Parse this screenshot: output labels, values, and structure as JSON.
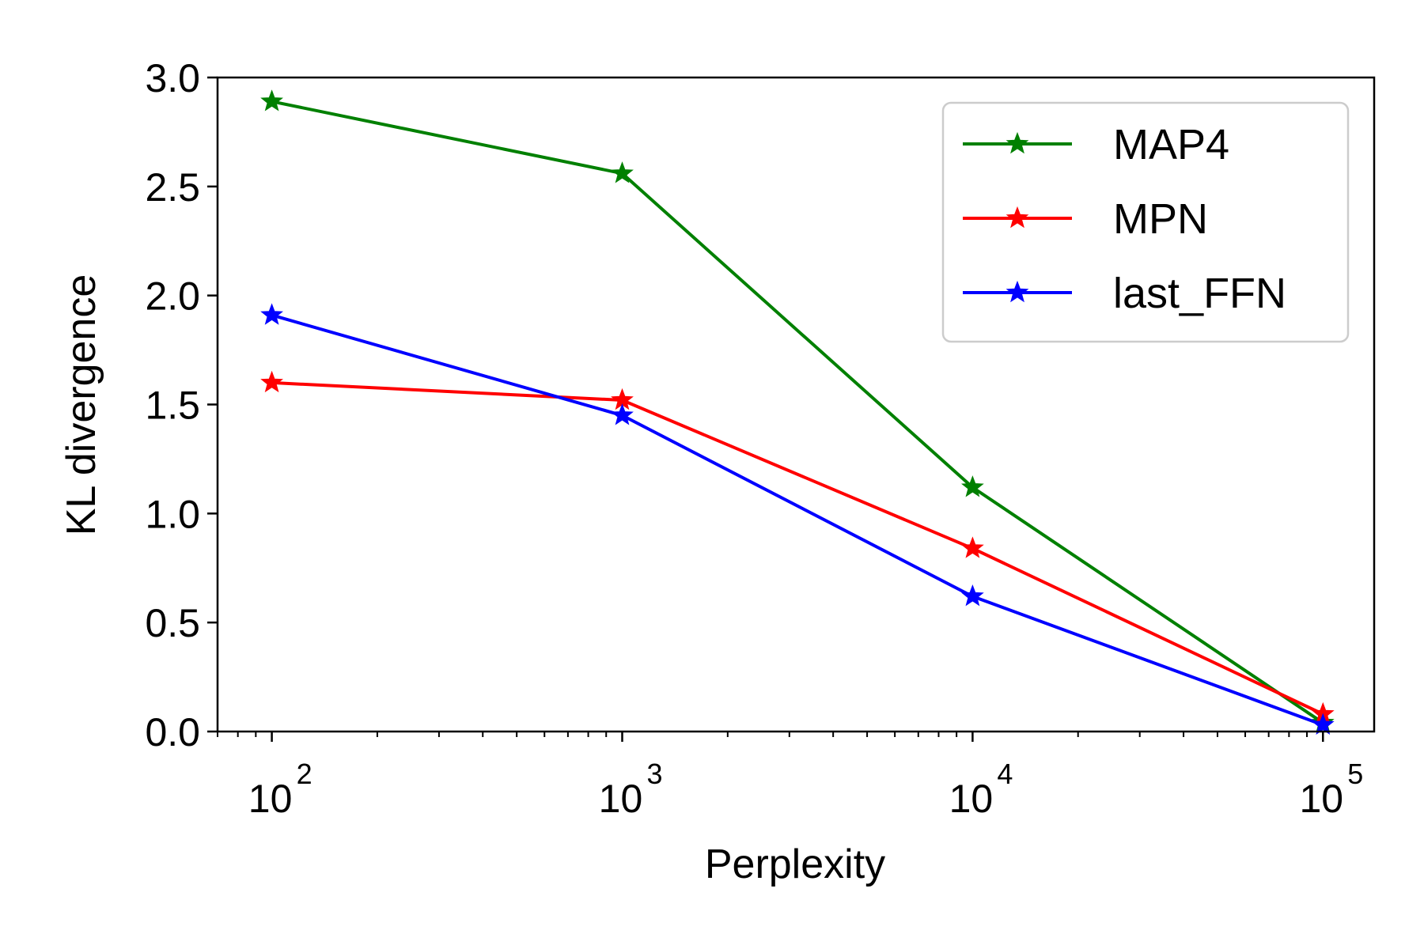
{
  "chart_data": {
    "type": "line",
    "xlabel": "Perplexity",
    "ylabel": "KL divergence",
    "xscale": "log",
    "xlim": [
      70,
      140000
    ],
    "ylim": [
      0,
      3.0
    ],
    "grid": false,
    "legend_position": "top-right",
    "x": [
      100,
      1000,
      10000,
      100000
    ],
    "x_tick_values": [
      100,
      1000,
      10000,
      100000
    ],
    "x_tick_labels": [
      {
        "base": "10",
        "exp": "2"
      },
      {
        "base": "10",
        "exp": "3"
      },
      {
        "base": "10",
        "exp": "4"
      },
      {
        "base": "10",
        "exp": "5"
      }
    ],
    "y_tick_values": [
      0,
      0.5,
      1.0,
      1.5,
      2.0,
      2.5,
      3.0
    ],
    "y_tick_labels": [
      "0.0",
      "0.5",
      "1.0",
      "1.5",
      "2.0",
      "2.5",
      "3.0"
    ],
    "marker": "star",
    "series": [
      {
        "name": "MAP4",
        "color": "#008000",
        "values": [
          2.89,
          2.56,
          1.12,
          0.04
        ]
      },
      {
        "name": "MPN",
        "color": "#ff0000",
        "values": [
          1.6,
          1.52,
          0.84,
          0.08
        ]
      },
      {
        "name": "last_FFN",
        "color": "#0000ff",
        "values": [
          1.91,
          1.45,
          0.62,
          0.03
        ]
      }
    ]
  }
}
